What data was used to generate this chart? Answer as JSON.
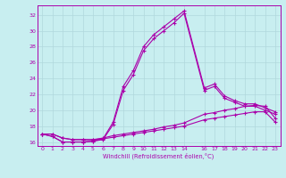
{
  "xlabel": "Windchill (Refroidissement éolien,°C)",
  "bg_color": "#c8eef0",
  "grid_color": "#b0d8dc",
  "line_color": "#aa00aa",
  "xlim": [
    -0.5,
    23.5
  ],
  "ylim": [
    15.5,
    33.2
  ],
  "xticks": [
    0,
    1,
    2,
    3,
    4,
    5,
    6,
    7,
    8,
    9,
    10,
    11,
    12,
    13,
    14,
    16,
    17,
    18,
    19,
    20,
    21,
    22,
    23
  ],
  "yticks": [
    16,
    18,
    20,
    22,
    24,
    26,
    28,
    30,
    32
  ],
  "line1_x": [
    0,
    1,
    2,
    3,
    4,
    5,
    6,
    7,
    8,
    9,
    10,
    11,
    12,
    13,
    14,
    16,
    17,
    18,
    19,
    20,
    21,
    22,
    23
  ],
  "line1_y": [
    17.0,
    16.7,
    16.0,
    16.0,
    16.0,
    16.1,
    16.4,
    18.5,
    23.0,
    25.0,
    28.0,
    29.5,
    30.5,
    31.5,
    32.5,
    22.8,
    23.3,
    21.8,
    21.2,
    20.8,
    20.8,
    20.3,
    19.8
  ],
  "line2_x": [
    0,
    1,
    2,
    3,
    4,
    5,
    6,
    7,
    8,
    9,
    10,
    11,
    12,
    13,
    14,
    16,
    17,
    18,
    19,
    20,
    21,
    22,
    23
  ],
  "line2_y": [
    17.0,
    16.7,
    16.0,
    16.0,
    16.0,
    16.1,
    16.3,
    18.2,
    22.5,
    24.5,
    27.5,
    29.0,
    30.0,
    31.0,
    32.2,
    22.5,
    23.0,
    21.5,
    21.0,
    20.5,
    20.5,
    20.0,
    19.5
  ],
  "line3_x": [
    0,
    1,
    2,
    3,
    4,
    5,
    6,
    7,
    8,
    9,
    10,
    11,
    12,
    13,
    14,
    16,
    17,
    18,
    19,
    20,
    21,
    22,
    23
  ],
  "line3_y": [
    17.0,
    17.0,
    16.5,
    16.3,
    16.3,
    16.3,
    16.5,
    16.8,
    17.0,
    17.2,
    17.4,
    17.6,
    17.9,
    18.1,
    18.4,
    19.5,
    19.7,
    20.0,
    20.2,
    20.5,
    20.6,
    20.5,
    19.0
  ],
  "line4_x": [
    0,
    1,
    2,
    3,
    4,
    5,
    6,
    7,
    8,
    9,
    10,
    11,
    12,
    13,
    14,
    16,
    17,
    18,
    19,
    20,
    21,
    22,
    23
  ],
  "line4_y": [
    17.0,
    17.0,
    16.5,
    16.3,
    16.3,
    16.3,
    16.4,
    16.6,
    16.8,
    17.0,
    17.2,
    17.4,
    17.6,
    17.8,
    18.0,
    18.8,
    19.0,
    19.2,
    19.4,
    19.6,
    19.8,
    19.8,
    18.5
  ]
}
